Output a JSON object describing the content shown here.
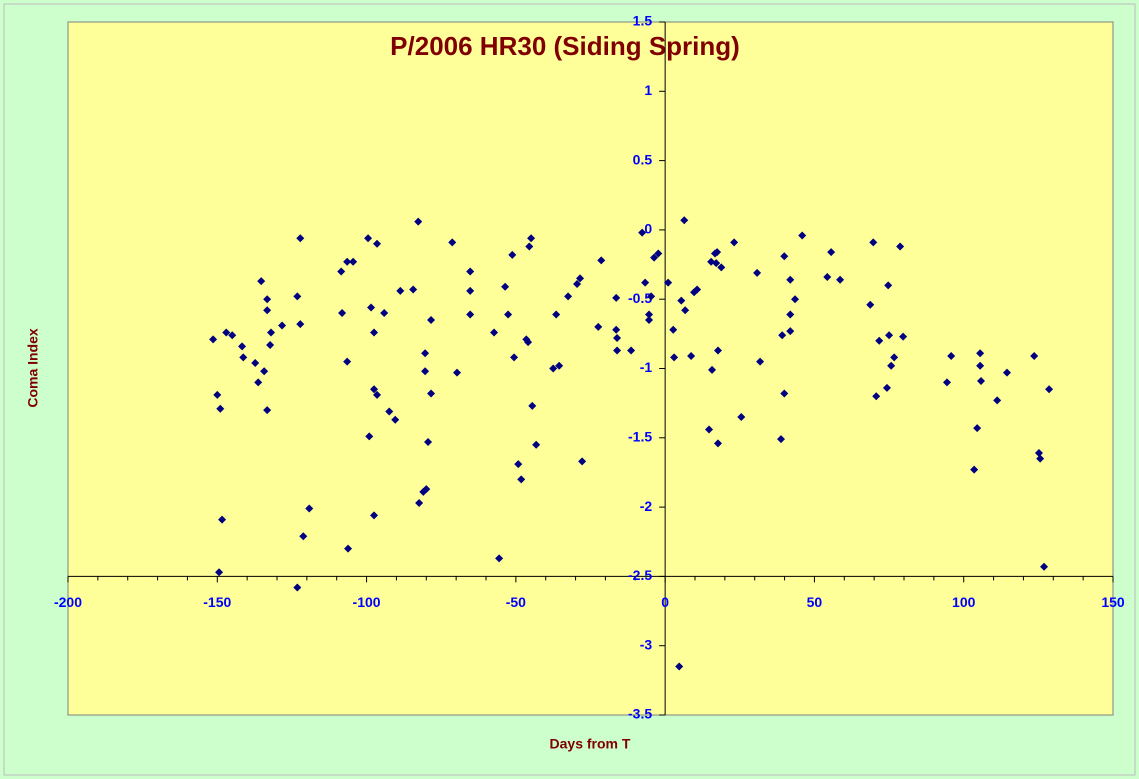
{
  "chart_data": {
    "type": "scatter",
    "title": "P/2006 HR30 (Siding Spring)",
    "x_label": "Days from T",
    "y_label": "Coma Index",
    "color": "#000080",
    "background": "#ffff99",
    "xlim": [
      -200,
      150
    ],
    "ylim": [
      -3.5,
      1.5
    ],
    "xticks": [
      -200,
      -150,
      -100,
      -50,
      0,
      50,
      100,
      150
    ],
    "yticks": [
      -3.5,
      -3,
      -2.5,
      -2,
      -1.5,
      -1,
      -0.5,
      0,
      0.5,
      1,
      1.5
    ],
    "x_axis_crosses_y_at": -2.5,
    "y_axis_crosses_x_at": 0,
    "x": [
      -151.4,
      -150,
      -149,
      -148.4,
      -149.4,
      -147,
      -145,
      -141.7,
      -141.3,
      -137.3,
      -136.3,
      -135.3,
      -134.3,
      -133.3,
      -133.3,
      -133.3,
      -132.3,
      -132,
      -128.3,
      -123.2,
      -123.2,
      -122.2,
      -122.2,
      -121.2,
      -119.2,
      -108.5,
      -108.2,
      -106.5,
      -106.5,
      -106.2,
      -104.5,
      -99.5,
      -99.1,
      -98.5,
      -97.5,
      -97.5,
      -97.5,
      -96.5,
      -96.5,
      -94.1,
      -92.4,
      -90.4,
      -88.7,
      -84.4,
      -82.7,
      -82.4,
      -81,
      -80.4,
      -80.4,
      -80,
      -79.4,
      -78.4,
      -78.4,
      -71.3,
      -69.7,
      -65.3,
      -65.3,
      -65.3,
      -57.3,
      -55.6,
      -53.6,
      -52.6,
      -51.2,
      -50.6,
      -49.2,
      -48.2,
      -46.5,
      -45.9,
      -45.5,
      -44.9,
      -44.5,
      -43.2,
      -37.5,
      -36.5,
      -35.5,
      -32.5,
      -29.5,
      -28.5,
      -27.8,
      -22.4,
      -21.4,
      -16.4,
      -16.4,
      -16.1,
      -16.1,
      -11.4,
      -7.7,
      -6.7,
      -5.4,
      -5.4,
      -4.7,
      -3.7,
      -2.3,
      1,
      2.7,
      3,
      4.7,
      5.4,
      6.4,
      6.7,
      8.7,
      9.7,
      10.7,
      14.7,
      15.4,
      15.7,
      16.7,
      17.1,
      17.4,
      17.7,
      17.7,
      18.8,
      23.1,
      25.5,
      30.8,
      31.8,
      38.8,
      39.2,
      39.9,
      39.9,
      41.9,
      41.9,
      41.9,
      43.5,
      45.9,
      54.3,
      55.6,
      58.6,
      68.7,
      69.7,
      70.7,
      71.7,
      74.3,
      74.7,
      75,
      75.7,
      76.7,
      78.7,
      79.7,
      94.4,
      95.8,
      103.5,
      104.5,
      105.5,
      105.5,
      105.8,
      111.2,
      114.5,
      123.6,
      125.2,
      125.6,
      126.9,
      128.6
    ],
    "values": [
      -0.79,
      -1.19,
      -1.29,
      -2.09,
      -2.47,
      -0.74,
      -0.76,
      -0.84,
      -0.92,
      -0.96,
      -1.1,
      -0.37,
      -1.02,
      -0.5,
      -0.58,
      -1.3,
      -0.83,
      -0.74,
      -0.69,
      -2.58,
      -0.48,
      -0.06,
      -0.68,
      -2.21,
      -2.01,
      -0.3,
      -0.6,
      -0.23,
      -0.95,
      -2.3,
      -0.23,
      -0.06,
      -1.49,
      -0.56,
      -0.74,
      -1.15,
      -2.06,
      -0.1,
      -1.19,
      -0.6,
      -1.31,
      -1.37,
      -0.44,
      -0.43,
      0.06,
      -1.97,
      -1.89,
      -0.89,
      -1.02,
      -1.87,
      -1.53,
      -0.65,
      -1.18,
      -0.09,
      -1.03,
      -0.3,
      -0.44,
      -0.61,
      -0.74,
      -2.37,
      -0.41,
      -0.61,
      -0.18,
      -0.92,
      -1.69,
      -1.8,
      -0.79,
      -0.81,
      -0.12,
      -0.06,
      -1.27,
      -1.55,
      -1,
      -0.61,
      -0.98,
      -0.48,
      -0.39,
      -0.35,
      -1.67,
      -0.7,
      -0.22,
      -0.49,
      -0.72,
      -0.78,
      -0.87,
      -0.87,
      -0.02,
      -0.38,
      -0.61,
      -0.65,
      -0.48,
      -0.2,
      -0.17,
      -0.38,
      -0.72,
      -0.92,
      -3.15,
      -0.51,
      0.07,
      -0.58,
      -0.91,
      -0.45,
      -0.43,
      -1.44,
      -0.23,
      -1.01,
      -0.17,
      -0.24,
      -0.16,
      -0.87,
      -1.54,
      -0.27,
      -0.09,
      -1.35,
      -0.31,
      -0.95,
      -1.51,
      -0.76,
      -0.19,
      -1.18,
      -0.36,
      -0.61,
      -0.73,
      -0.5,
      -0.04,
      -0.34,
      -0.16,
      -0.36,
      -0.54,
      -0.09,
      -1.2,
      -0.8,
      -1.14,
      -0.4,
      -0.76,
      -0.98,
      -0.92,
      -0.12,
      -0.77,
      -1.1,
      -0.91,
      -1.73,
      -1.43,
      -0.89,
      -0.98,
      -1.09,
      -1.23,
      -1.03,
      -0.91,
      -1.61,
      -1.65,
      -2.43,
      -1.15
    ]
  }
}
